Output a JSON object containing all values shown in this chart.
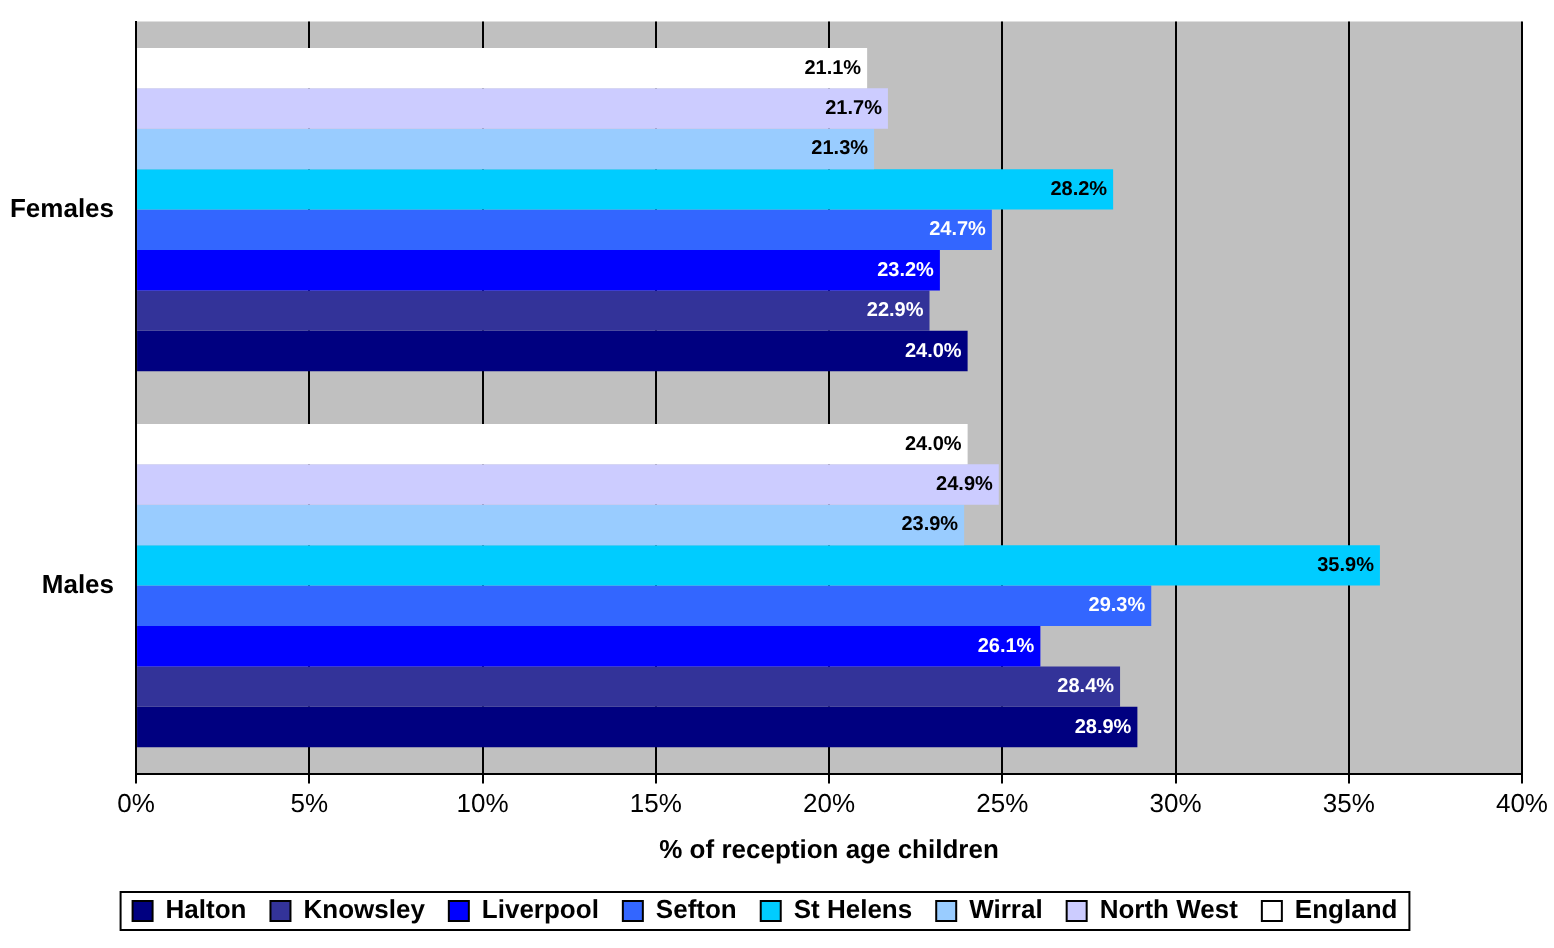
{
  "chart_data": {
    "type": "bar",
    "orientation": "horizontal",
    "xlabel": "% of reception age children",
    "categories": [
      "Females",
      "Males"
    ],
    "series": [
      {
        "name": "Halton",
        "color": "#000080",
        "values": [
          24.0,
          28.9
        ],
        "value_labels": [
          "24.0%",
          "28.9%"
        ]
      },
      {
        "name": "Knowsley",
        "color": "#333399",
        "values": [
          22.9,
          28.4
        ],
        "value_labels": [
          "22.9%",
          "28.4%"
        ]
      },
      {
        "name": "Liverpool",
        "color": "#0000ff",
        "values": [
          23.2,
          26.1
        ],
        "value_labels": [
          "23.2%",
          "26.1%"
        ]
      },
      {
        "name": "Sefton",
        "color": "#3366ff",
        "values": [
          24.7,
          29.3
        ],
        "value_labels": [
          "24.7%",
          "29.3%"
        ]
      },
      {
        "name": "St Helens",
        "color": "#00ccff",
        "values": [
          28.2,
          35.9
        ],
        "value_labels": [
          "28.2%",
          "35.9%"
        ]
      },
      {
        "name": "Wirral",
        "color": "#99ccff",
        "values": [
          21.3,
          23.9
        ],
        "value_labels": [
          "21.3%",
          "23.9%"
        ]
      },
      {
        "name": "North West",
        "color": "#ccccff",
        "values": [
          21.7,
          24.9
        ],
        "value_labels": [
          "21.7%",
          "24.9%"
        ]
      },
      {
        "name": "England",
        "color": "#ffffff",
        "values": [
          21.1,
          24.0
        ],
        "value_labels": [
          "21.1%",
          "24.0%"
        ]
      }
    ],
    "xlim": [
      0,
      40
    ],
    "xticks": [
      {
        "value": 0,
        "label": "0%"
      },
      {
        "value": 5,
        "label": "5%"
      },
      {
        "value": 10,
        "label": "10%"
      },
      {
        "value": 15,
        "label": "15%"
      },
      {
        "value": 20,
        "label": "20%"
      },
      {
        "value": 25,
        "label": "25%"
      },
      {
        "value": 30,
        "label": "30%"
      },
      {
        "value": 35,
        "label": "35%"
      },
      {
        "value": 40,
        "label": "40%"
      }
    ],
    "grid": "x",
    "legend": "bottom"
  }
}
